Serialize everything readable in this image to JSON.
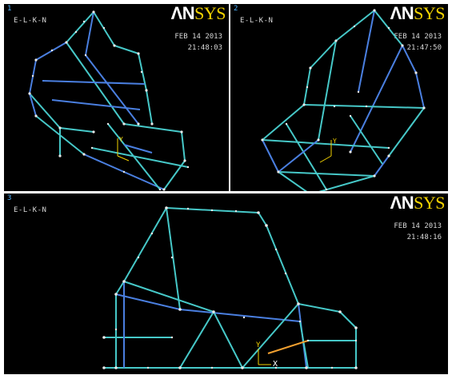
{
  "viewports": [
    {
      "number": "1",
      "label": "E-L-K-N",
      "logo_main": "ΛN",
      "logo_accent": "SYS",
      "date": "FEB 14 2013",
      "time": "21:48:03"
    },
    {
      "number": "2",
      "label": "E-L-K-N",
      "logo_main": "ΛN",
      "logo_accent": "SYS",
      "date": "FEB 14 2013",
      "time": "21:47:50"
    },
    {
      "number": "3",
      "label": "E-L-K-N",
      "logo_main": "ΛN",
      "logo_accent": "SYS",
      "date": "FEB 14 2013",
      "time": "21:48:16"
    }
  ],
  "axis_labels": {
    "y": "Y",
    "x": "X"
  },
  "colors": {
    "beam": "#46c8c8",
    "beam_alt": "#4a7fe0",
    "node": "#e8e8e8",
    "background": "#000000",
    "logo_accent": "#f2d200"
  }
}
